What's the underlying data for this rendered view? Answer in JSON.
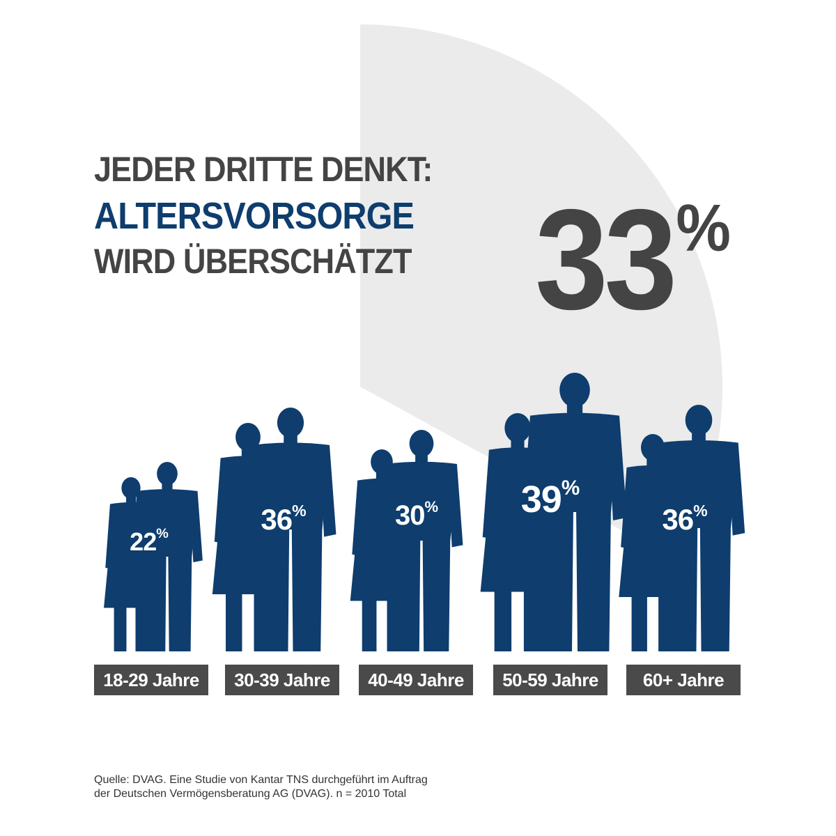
{
  "colors": {
    "navy": "#0e3d6e",
    "dark_gray": "#444444",
    "label_bg": "#4a4a4a",
    "wedge": "#ebebeb"
  },
  "headline": {
    "line1": "JEDER DRITTE DENKT:",
    "line2": "ALTERSVORSORGE",
    "line3": "WIRD ÜBERSCHÄTZT"
  },
  "total": {
    "value": "33",
    "unit": "%",
    "fraction": 0.33
  },
  "chart_data": {
    "type": "bar",
    "categories": [
      "18-29 Jahre",
      "30-39 Jahre",
      "40-49 Jahre",
      "50-59 Jahre",
      "60+ Jahre"
    ],
    "values": [
      22,
      36,
      30,
      39,
      36
    ],
    "value_labels": [
      "22",
      "36",
      "30",
      "39",
      "36"
    ],
    "unit": "%"
  },
  "source": {
    "line1": "Quelle: DVAG. Eine Studie von Kantar TNS durchgeführt im Auftrag",
    "line2": "der Deutschen Vermögensberatung AG (DVAG). n = 2010 Total"
  }
}
